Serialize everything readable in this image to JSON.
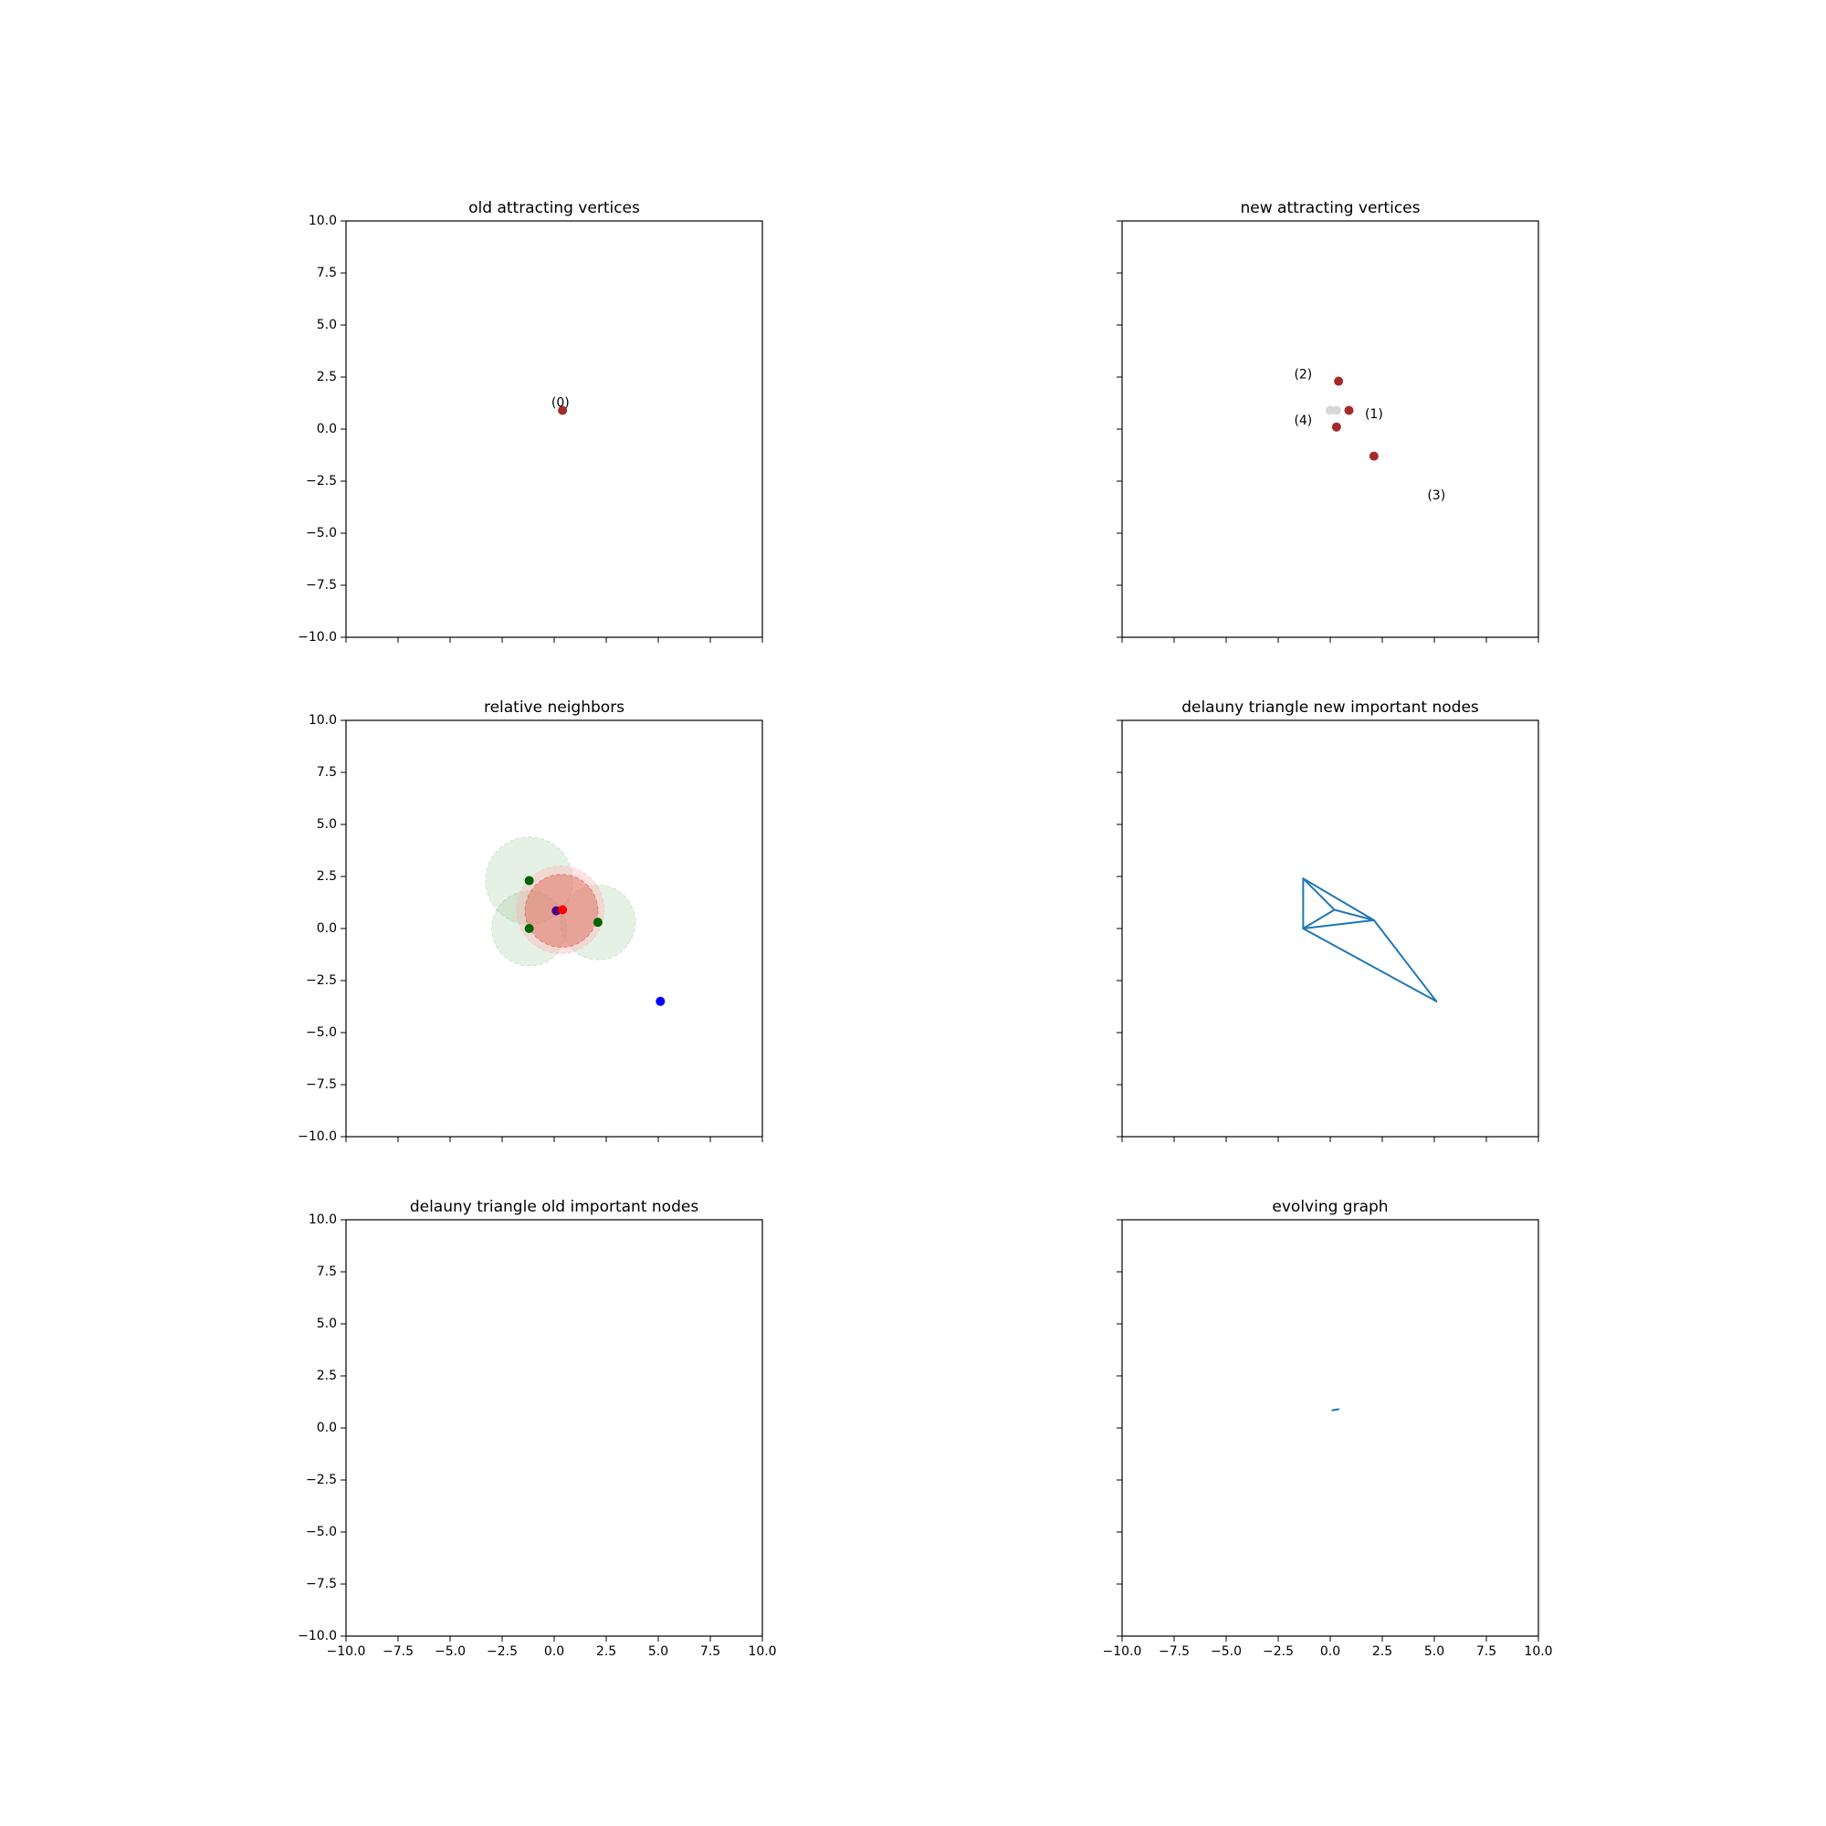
{
  "figure": {
    "xlim": [
      -10,
      10
    ],
    "ylim": [
      -10,
      10
    ],
    "tick_values": [
      -10.0,
      -7.5,
      -5.0,
      -2.5,
      0.0,
      2.5,
      5.0,
      7.5,
      10.0
    ],
    "tick_labels": [
      "−10.0",
      "−7.5",
      "−5.0",
      "−2.5",
      "0.0",
      "2.5",
      "5.0",
      "7.5",
      "10.0"
    ]
  },
  "chart_data": [
    {
      "type": "scatter",
      "title": "old attracting vertices",
      "show_ylabels": true,
      "show_xlabels": false,
      "points": [
        {
          "x": 0.4,
          "y": 0.9,
          "color": "#a52a2a"
        }
      ],
      "annotations": [
        {
          "text": "(0)",
          "x": 0.3,
          "y": 1.25
        }
      ]
    },
    {
      "type": "scatter",
      "title": "new attracting vertices",
      "show_ylabels": false,
      "show_xlabels": false,
      "points": [
        {
          "x": 0.0,
          "y": 0.9,
          "color": "#d8d8d8"
        },
        {
          "x": 0.3,
          "y": 0.9,
          "color": "#d8d8d8"
        },
        {
          "x": 0.9,
          "y": 0.9,
          "color": "#a52a2a"
        },
        {
          "x": 0.4,
          "y": 2.3,
          "color": "#a52a2a"
        },
        {
          "x": 2.1,
          "y": -1.3,
          "color": "#a52a2a"
        },
        {
          "x": 0.3,
          "y": 0.1,
          "color": "#a52a2a"
        }
      ],
      "annotations": [
        {
          "text": "(1)",
          "x": 2.1,
          "y": 0.7
        },
        {
          "text": "(2)",
          "x": -1.3,
          "y": 2.6
        },
        {
          "text": "(3)",
          "x": 5.1,
          "y": -3.2
        },
        {
          "text": "(4)",
          "x": -1.3,
          "y": 0.4
        }
      ]
    },
    {
      "type": "scatter",
      "title": "relative neighbors",
      "show_ylabels": true,
      "show_xlabels": false,
      "circles": [
        {
          "cx": -1.2,
          "cy": 2.3,
          "r": 2.1,
          "color": "#2e8b2e",
          "opacity": 0.12
        },
        {
          "cx": -1.2,
          "cy": 0.0,
          "r": 1.8,
          "color": "#2e8b2e",
          "opacity": 0.12
        },
        {
          "cx": 2.1,
          "cy": 0.3,
          "r": 1.8,
          "color": "#2e8b2e",
          "opacity": 0.12
        },
        {
          "cx": 0.3,
          "cy": 0.9,
          "r": 2.1,
          "color": "#ffb0b0",
          "opacity": 0.35
        },
        {
          "cx": 0.35,
          "cy": 0.85,
          "r": 1.75,
          "color": "#e06050",
          "opacity": 0.45
        }
      ],
      "points": [
        {
          "x": -1.2,
          "y": 2.3,
          "color": "#006400"
        },
        {
          "x": -1.2,
          "y": 0.0,
          "color": "#006400"
        },
        {
          "x": 2.1,
          "y": 0.3,
          "color": "#006400"
        },
        {
          "x": 0.1,
          "y": 0.85,
          "color": "#4b0082"
        },
        {
          "x": 0.4,
          "y": 0.9,
          "color": "#ff0000"
        },
        {
          "x": 5.1,
          "y": -3.5,
          "color": "#0000ff"
        }
      ]
    },
    {
      "type": "line",
      "title": "delauny triangle new important nodes",
      "show_ylabels": false,
      "show_xlabels": false,
      "segments": [
        [
          [
            -1.3,
            2.4
          ],
          [
            0.2,
            0.9
          ]
        ],
        [
          [
            0.2,
            0.9
          ],
          [
            -1.3,
            0.0
          ]
        ],
        [
          [
            -1.3,
            0.0
          ],
          [
            -1.3,
            2.4
          ]
        ],
        [
          [
            -1.3,
            2.4
          ],
          [
            2.1,
            0.4
          ]
        ],
        [
          [
            0.2,
            0.9
          ],
          [
            2.1,
            0.4
          ]
        ],
        [
          [
            -1.3,
            0.0
          ],
          [
            2.1,
            0.4
          ]
        ],
        [
          [
            2.1,
            0.4
          ],
          [
            5.1,
            -3.5
          ]
        ],
        [
          [
            5.1,
            -3.5
          ],
          [
            -1.3,
            0.0
          ]
        ]
      ],
      "line_color": "#1f77b4"
    },
    {
      "type": "scatter",
      "title": "delauny triangle old important nodes",
      "show_ylabels": true,
      "show_xlabels": true
    },
    {
      "type": "line",
      "title": "evolving graph",
      "show_ylabels": false,
      "show_xlabels": true,
      "segments": [
        [
          [
            0.1,
            0.85
          ],
          [
            0.4,
            0.9
          ]
        ]
      ],
      "line_color": "#1f77b4"
    }
  ]
}
